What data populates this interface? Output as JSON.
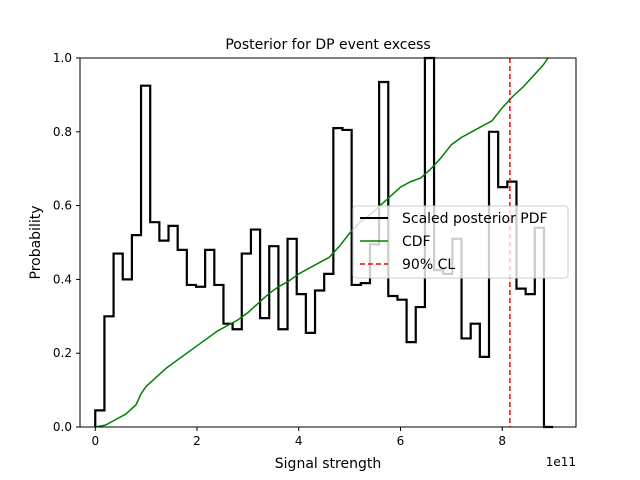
{
  "chart_data": {
    "type": "line",
    "title": "Posterior for DP event excess",
    "xlabel": "Signal strength",
    "ylabel": "Probability",
    "x_offset_label": "1e11",
    "xlim": [
      -0.3,
      9.45
    ],
    "ylim": [
      0.0,
      1.0
    ],
    "x_ticks": [
      0,
      2,
      4,
      6,
      8
    ],
    "x_tick_labels": [
      "0",
      "2",
      "4",
      "6",
      "8"
    ],
    "y_ticks": [
      0.0,
      0.2,
      0.4,
      0.6,
      0.8,
      1.0
    ],
    "y_tick_labels": [
      "0.0",
      "0.2",
      "0.4",
      "0.6",
      "0.8",
      "1.0"
    ],
    "grid": false,
    "legend": {
      "position": "center-right",
      "entries": [
        {
          "label": "Scaled posterior PDF",
          "color": "#000000",
          "style": "solid"
        },
        {
          "label": "CDF",
          "color": "#008000",
          "style": "solid"
        },
        {
          "label": "90% CL",
          "color": "#ff0000",
          "style": "dashed"
        }
      ]
    },
    "pdf_hist": {
      "name": "Scaled posterior PDF",
      "color": "#000000",
      "bin_edges": [
        0.0,
        0.18,
        0.36,
        0.54,
        0.72,
        0.9,
        1.08,
        1.26,
        1.44,
        1.62,
        1.8,
        1.98,
        2.16,
        2.34,
        2.52,
        2.7,
        2.88,
        3.06,
        3.24,
        3.42,
        3.6,
        3.78,
        3.96,
        4.14,
        4.32,
        4.5,
        4.68,
        4.86,
        5.04,
        5.22,
        5.4,
        5.58,
        5.76,
        5.94,
        6.12,
        6.3,
        6.48,
        6.66,
        6.84,
        7.02,
        7.2,
        7.38,
        7.56,
        7.74,
        7.92,
        8.1,
        8.28,
        8.46,
        8.64,
        8.82,
        9.0
      ],
      "values": [
        0.045,
        0.3,
        0.47,
        0.4,
        0.52,
        0.925,
        0.555,
        0.505,
        0.545,
        0.48,
        0.385,
        0.38,
        0.48,
        0.385,
        0.28,
        0.265,
        0.47,
        0.535,
        0.295,
        0.49,
        0.265,
        0.51,
        0.36,
        0.255,
        0.37,
        0.415,
        0.81,
        0.805,
        0.385,
        0.39,
        0.495,
        0.935,
        0.355,
        0.345,
        0.23,
        0.325,
        1.0,
        0.425,
        0.415,
        0.51,
        0.24,
        0.28,
        0.19,
        0.8,
        0.65,
        0.665,
        0.375,
        0.36,
        0.54,
        0.0
      ]
    },
    "cdf": {
      "name": "CDF",
      "color": "#008000",
      "x": [
        0.0,
        0.2,
        0.4,
        0.6,
        0.8,
        0.9,
        1.0,
        1.2,
        1.4,
        1.6,
        1.8,
        2.0,
        2.2,
        2.4,
        2.6,
        2.8,
        3.0,
        3.2,
        3.4,
        3.6,
        3.8,
        4.0,
        4.2,
        4.4,
        4.6,
        4.8,
        5.0,
        5.2,
        5.4,
        5.6,
        5.8,
        6.0,
        6.2,
        6.4,
        6.6,
        6.8,
        7.0,
        7.2,
        7.4,
        7.6,
        7.8,
        8.0,
        8.2,
        8.4,
        8.6,
        8.8,
        8.9
      ],
      "y": [
        0.0,
        0.005,
        0.02,
        0.035,
        0.06,
        0.09,
        0.11,
        0.135,
        0.16,
        0.18,
        0.2,
        0.22,
        0.24,
        0.26,
        0.275,
        0.29,
        0.31,
        0.335,
        0.36,
        0.38,
        0.395,
        0.415,
        0.43,
        0.445,
        0.46,
        0.49,
        0.525,
        0.555,
        0.575,
        0.6,
        0.625,
        0.65,
        0.665,
        0.675,
        0.7,
        0.73,
        0.765,
        0.785,
        0.8,
        0.815,
        0.83,
        0.865,
        0.895,
        0.92,
        0.95,
        0.98,
        1.0
      ]
    },
    "cl90": {
      "name": "90% CL",
      "color": "#ff0000",
      "x": 8.15
    }
  }
}
